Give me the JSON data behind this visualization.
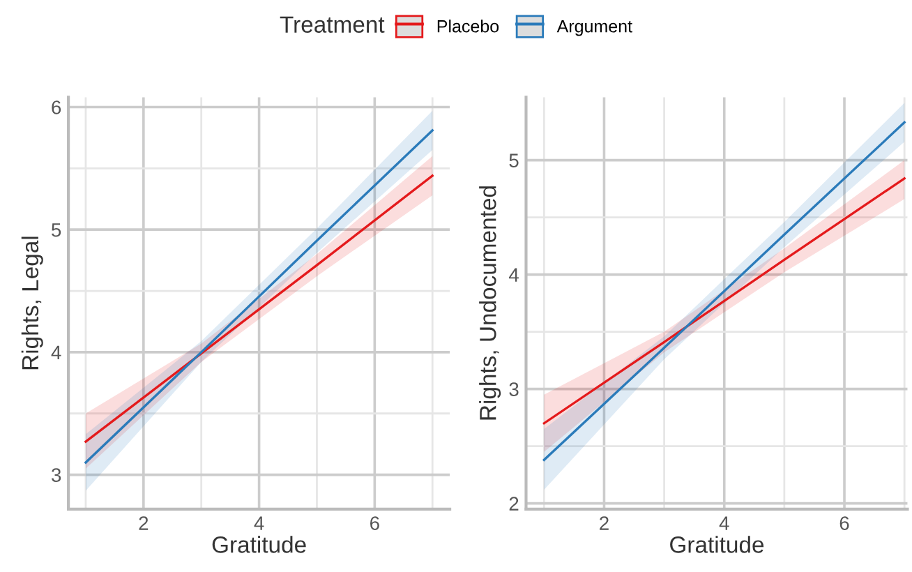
{
  "chart_data": [
    {
      "type": "line",
      "xlabel": "Gratitude",
      "ylabel": "Rights, Legal",
      "legend_title": "Treatment",
      "legend": "top",
      "grid": true,
      "xlim": [
        0.7,
        7.3
      ],
      "ylim": [
        2.72,
        6.08
      ],
      "xticks": [
        {
          "value": 1,
          "label": null
        },
        2,
        {
          "value": 3,
          "label": null
        },
        4,
        {
          "value": 5,
          "label": null
        },
        6,
        {
          "value": 7,
          "label": null
        }
      ],
      "yticks": [
        3,
        {
          "value": 3.5,
          "label": null
        },
        4,
        {
          "value": 4.5,
          "label": null
        },
        5,
        {
          "value": 5.5,
          "label": null
        },
        6
      ],
      "x": [
        1,
        3,
        5,
        7
      ],
      "series": [
        {
          "name": "Placebo",
          "color": "#e41a1c",
          "values": [
            3.27,
            3.99,
            4.71,
            5.44
          ],
          "lower": [
            3.05,
            3.92,
            4.62,
            5.28
          ],
          "upper": [
            3.5,
            4.07,
            4.8,
            5.6
          ]
        },
        {
          "name": "Argument",
          "color": "#2b7bba",
          "values": [
            3.1,
            4.0,
            4.91,
            5.81
          ],
          "lower": [
            2.87,
            3.92,
            4.81,
            5.65
          ],
          "upper": [
            3.33,
            4.09,
            5.01,
            5.97
          ]
        }
      ]
    },
    {
      "type": "line",
      "xlabel": "Gratitude",
      "ylabel": "Rights, Undocumented",
      "grid": true,
      "xlim": [
        0.7,
        7.05
      ],
      "ylim": [
        1.95,
        5.55
      ],
      "xticks": [
        {
          "value": 1,
          "label": null
        },
        2,
        {
          "value": 3,
          "label": null
        },
        4,
        {
          "value": 5,
          "label": null
        },
        6,
        {
          "value": 7,
          "label": null
        }
      ],
      "yticks": [
        2,
        {
          "value": 2.5,
          "label": null
        },
        3,
        {
          "value": 3.5,
          "label": null
        },
        4,
        {
          "value": 4.5,
          "label": null
        },
        5
      ],
      "x": [
        1,
        3,
        5,
        7
      ],
      "series": [
        {
          "color": "#e41a1c",
          "values": [
            2.7,
            3.41,
            4.13,
            4.84
          ],
          "lower": [
            2.45,
            3.32,
            4.02,
            4.66
          ],
          "upper": [
            2.95,
            3.5,
            4.23,
            5.0
          ]
        },
        {
          "color": "#2b7bba",
          "values": [
            2.38,
            3.36,
            4.35,
            5.33
          ],
          "lower": [
            2.12,
            3.26,
            4.24,
            5.16
          ],
          "upper": [
            2.65,
            3.46,
            4.46,
            5.5
          ]
        }
      ]
    }
  ]
}
